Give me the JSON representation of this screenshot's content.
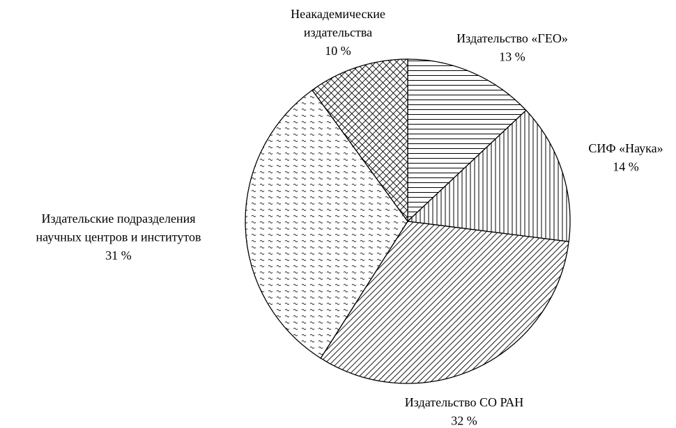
{
  "chart_data": {
    "type": "pie",
    "categories": [
      "Издательство «ГЕО»",
      "СИФ «Наука»",
      "Издательство СО РАН",
      "Издательские подразделения\nнаучных центров и институтов",
      "Неакадемические\nиздательства"
    ],
    "values": [
      13,
      14,
      32,
      31,
      10
    ],
    "value_labels": [
      "13 %",
      "14 %",
      "32 %",
      "31 %",
      "10 %"
    ],
    "patterns": [
      "horizontal",
      "vertical",
      "diagonal",
      "wave",
      "crosshatch"
    ],
    "color": "#000000"
  }
}
